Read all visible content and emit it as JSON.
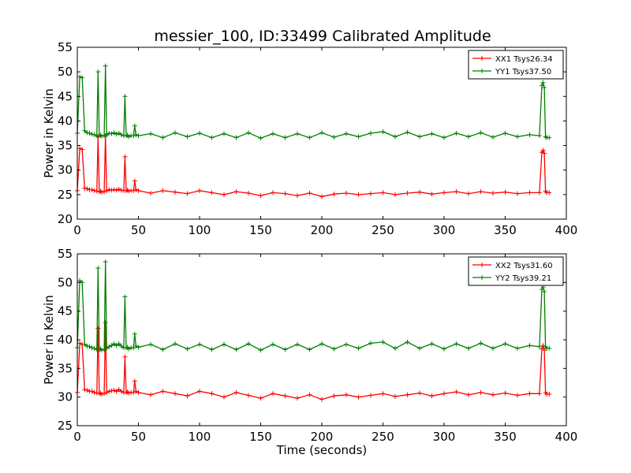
{
  "title": "messier_100, ID:33499 Calibrated Amplitude",
  "chart_data": [
    {
      "type": "line",
      "title": "messier_100, ID:33499 Calibrated Amplitude",
      "xlabel": "",
      "ylabel": "Power in Kelvin",
      "xlim": [
        0,
        400
      ],
      "ylim": [
        20,
        55
      ],
      "xticks": [
        0,
        50,
        100,
        150,
        200,
        250,
        300,
        350,
        400
      ],
      "yticks": [
        20,
        25,
        30,
        35,
        40,
        45,
        50,
        55
      ],
      "legend_position": "top-right",
      "grid": false,
      "series": [
        {
          "name": "XX1 Tsys26.34",
          "color": "#ff0000",
          "x": [
            0,
            2,
            4,
            6,
            8,
            10,
            12,
            14,
            16,
            17,
            18,
            19,
            20,
            22,
            23,
            24,
            26,
            28,
            30,
            32,
            34,
            36,
            38,
            39,
            40,
            41,
            42,
            44,
            46,
            47,
            48,
            50,
            60,
            70,
            80,
            90,
            100,
            110,
            120,
            130,
            140,
            150,
            160,
            170,
            180,
            190,
            200,
            210,
            220,
            230,
            240,
            250,
            260,
            270,
            280,
            290,
            300,
            310,
            320,
            330,
            340,
            350,
            360,
            370,
            378,
            380,
            381,
            382,
            383,
            384,
            386
          ],
          "values": [
            25.8,
            34.4,
            34.2,
            26.3,
            26.2,
            26.0,
            26.0,
            25.8,
            25.7,
            36.8,
            25.6,
            25.7,
            25.5,
            25.6,
            37.0,
            25.8,
            26.0,
            25.9,
            26.0,
            25.9,
            26.1,
            25.9,
            25.8,
            32.7,
            25.8,
            25.9,
            25.7,
            25.8,
            25.8,
            27.8,
            26.0,
            25.8,
            25.3,
            25.8,
            25.5,
            25.2,
            25.8,
            25.4,
            25.0,
            25.6,
            25.3,
            24.8,
            25.4,
            25.2,
            24.8,
            25.3,
            24.6,
            25.1,
            25.3,
            25.0,
            25.2,
            25.4,
            25.0,
            25.3,
            25.5,
            25.1,
            25.4,
            25.6,
            25.2,
            25.6,
            25.3,
            25.5,
            25.2,
            25.4,
            25.4,
            33.6,
            34.0,
            33.4,
            25.7,
            25.4,
            25.4
          ]
        },
        {
          "name": "YY1 Tsys37.50",
          "color": "#008000",
          "x": [
            0,
            2,
            4,
            6,
            8,
            10,
            12,
            14,
            16,
            17,
            18,
            19,
            20,
            22,
            23,
            24,
            26,
            28,
            30,
            32,
            34,
            36,
            38,
            39,
            40,
            41,
            42,
            44,
            46,
            47,
            48,
            50,
            60,
            70,
            80,
            90,
            100,
            110,
            120,
            130,
            140,
            150,
            160,
            170,
            180,
            190,
            200,
            210,
            220,
            230,
            240,
            250,
            260,
            270,
            280,
            290,
            300,
            310,
            320,
            330,
            340,
            350,
            360,
            370,
            378,
            380,
            381,
            382,
            383,
            384,
            386
          ],
          "values": [
            37.5,
            49.0,
            48.8,
            38.0,
            37.6,
            37.5,
            37.3,
            37.2,
            37.0,
            50.0,
            37.0,
            37.1,
            36.9,
            37.0,
            51.2,
            37.2,
            37.5,
            37.4,
            37.6,
            37.3,
            37.5,
            37.2,
            37.0,
            45.0,
            37.0,
            37.1,
            36.8,
            37.0,
            37.0,
            39.0,
            37.2,
            37.0,
            37.4,
            36.6,
            37.6,
            36.8,
            37.5,
            36.6,
            37.4,
            36.6,
            37.6,
            36.5,
            37.4,
            36.6,
            37.4,
            36.6,
            37.6,
            36.7,
            37.4,
            36.8,
            37.5,
            37.8,
            36.8,
            37.7,
            36.8,
            37.4,
            36.6,
            37.5,
            36.8,
            37.6,
            36.7,
            37.5,
            36.8,
            37.2,
            37.0,
            47.2,
            47.8,
            46.8,
            36.8,
            36.6,
            36.6
          ]
        }
      ]
    },
    {
      "type": "line",
      "title": "",
      "xlabel": "Time (seconds)",
      "ylabel": "Power in Kelvin",
      "xlim": [
        0,
        400
      ],
      "ylim": [
        25,
        55
      ],
      "xticks": [
        0,
        50,
        100,
        150,
        200,
        250,
        300,
        350,
        400
      ],
      "yticks": [
        25,
        30,
        35,
        40,
        45,
        50,
        55
      ],
      "legend_position": "top-right",
      "grid": false,
      "series": [
        {
          "name": "XX2 Tsys31.60",
          "color": "#ff0000",
          "x": [
            0,
            2,
            4,
            6,
            8,
            10,
            12,
            14,
            16,
            17,
            18,
            19,
            20,
            22,
            23,
            24,
            26,
            28,
            30,
            32,
            34,
            36,
            38,
            39,
            40,
            41,
            42,
            44,
            46,
            47,
            48,
            50,
            60,
            70,
            80,
            90,
            100,
            110,
            120,
            130,
            140,
            150,
            160,
            170,
            180,
            190,
            200,
            210,
            220,
            230,
            240,
            250,
            260,
            270,
            280,
            290,
            300,
            310,
            320,
            330,
            340,
            350,
            360,
            370,
            378,
            380,
            381,
            382,
            383,
            384,
            386
          ],
          "values": [
            30.8,
            39.4,
            39.2,
            31.3,
            31.2,
            31.0,
            31.0,
            30.8,
            30.7,
            42.0,
            30.6,
            30.7,
            30.5,
            30.6,
            43.0,
            30.8,
            31.0,
            31.1,
            31.2,
            31.0,
            31.3,
            31.0,
            30.8,
            37.0,
            30.8,
            30.9,
            30.7,
            30.8,
            30.8,
            32.8,
            31.0,
            30.8,
            30.4,
            31.0,
            30.6,
            30.2,
            31.0,
            30.6,
            30.0,
            30.8,
            30.3,
            29.8,
            30.6,
            30.2,
            29.8,
            30.4,
            29.6,
            30.2,
            30.4,
            30.0,
            30.3,
            30.6,
            30.1,
            30.4,
            30.7,
            30.2,
            30.6,
            30.9,
            30.4,
            30.8,
            30.4,
            30.7,
            30.3,
            30.6,
            30.6,
            38.4,
            39.0,
            38.2,
            30.8,
            30.5,
            30.5
          ]
        },
        {
          "name": "YY2 Tsys39.21",
          "color": "#008000",
          "x": [
            0,
            2,
            4,
            6,
            8,
            10,
            12,
            14,
            16,
            17,
            18,
            19,
            20,
            22,
            23,
            24,
            26,
            28,
            30,
            32,
            34,
            36,
            38,
            39,
            40,
            41,
            42,
            44,
            46,
            47,
            48,
            50,
            60,
            70,
            80,
            90,
            100,
            110,
            120,
            130,
            140,
            150,
            160,
            170,
            180,
            190,
            200,
            210,
            220,
            230,
            240,
            250,
            260,
            270,
            280,
            290,
            300,
            310,
            320,
            330,
            340,
            350,
            360,
            370,
            378,
            380,
            381,
            382,
            383,
            384,
            386
          ],
          "values": [
            38.6,
            50.3,
            50.0,
            39.2,
            38.9,
            38.8,
            38.6,
            38.5,
            38.3,
            52.5,
            38.3,
            38.4,
            38.2,
            38.3,
            53.6,
            38.5,
            38.8,
            39.0,
            39.3,
            39.0,
            39.3,
            38.9,
            38.6,
            47.5,
            38.6,
            38.7,
            38.4,
            38.6,
            38.6,
            41.0,
            38.9,
            38.7,
            39.2,
            38.3,
            39.3,
            38.4,
            39.2,
            38.3,
            39.2,
            38.3,
            39.3,
            38.2,
            39.2,
            38.3,
            39.2,
            38.3,
            39.3,
            38.4,
            39.2,
            38.5,
            39.4,
            39.6,
            38.5,
            39.6,
            38.5,
            39.3,
            38.4,
            39.3,
            38.5,
            39.4,
            38.5,
            39.3,
            38.5,
            39.0,
            38.8,
            48.8,
            49.2,
            48.4,
            38.8,
            38.5,
            38.5
          ]
        }
      ]
    }
  ]
}
